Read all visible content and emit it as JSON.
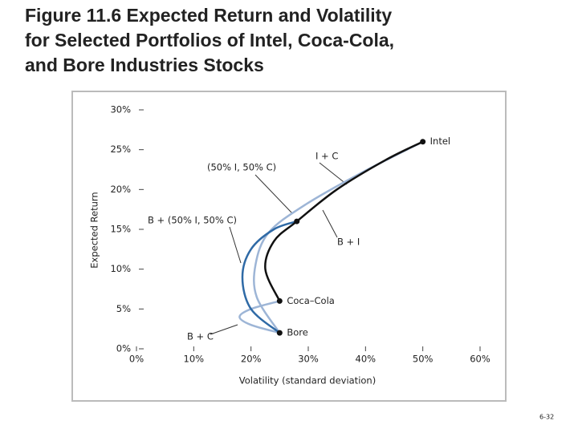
{
  "chart_data": {
    "type": "line",
    "title_lines": [
      "Figure 11.6  Expected Return and Volatility",
      "for Selected Portfolios of Intel, Coca-Cola,",
      "and Bore Industries Stocks"
    ],
    "x_label": "Volatility (standard deviation)",
    "y_label": "Expected Return",
    "xlim": [
      0,
      60
    ],
    "ylim": [
      0,
      30
    ],
    "xticks": [
      {
        "value": 0,
        "label": "0%"
      },
      {
        "value": 10,
        "label": "10%"
      },
      {
        "value": 20,
        "label": "20%"
      },
      {
        "value": 30,
        "label": "30%"
      },
      {
        "value": 40,
        "label": "40%"
      },
      {
        "value": 50,
        "label": "50%"
      },
      {
        "value": 60,
        "label": "60%"
      }
    ],
    "yticks": [
      {
        "value": 0,
        "label": "0%"
      },
      {
        "value": 5,
        "label": "5%"
      },
      {
        "value": 10,
        "label": "10%"
      },
      {
        "value": 15,
        "label": "15%"
      },
      {
        "value": 20,
        "label": "20%"
      },
      {
        "value": 25,
        "label": "25%"
      },
      {
        "value": 30,
        "label": "30%"
      }
    ],
    "series": [
      {
        "color": "#9db5d6",
        "x": [
          25,
          21,
          20.8,
          23.1,
          29.5,
          39.3,
          50
        ],
        "y": [
          2,
          6.5,
          10.6,
          14.6,
          18.1,
          22.1,
          26
        ]
      },
      {
        "color": "#9db5d6",
        "x": [
          25,
          20,
          18,
          20,
          25
        ],
        "y": [
          2,
          3,
          4,
          5,
          6
        ]
      },
      {
        "color": "#2f6aa6",
        "x": [
          25,
          20,
          18.5,
          20,
          24,
          28
        ],
        "y": [
          2,
          5,
          9,
          12.5,
          15,
          16
        ]
      },
      {
        "color": "#111111",
        "x": [
          25,
          22.5,
          24,
          28,
          35,
          43.5,
          50
        ],
        "y": [
          6,
          10,
          13.5,
          16,
          20,
          23.7,
          26
        ]
      }
    ],
    "points": {
      "color": "#111111",
      "labels": [
        "Intel",
        "Coca–Cola",
        "Bore",
        null
      ],
      "x": [
        50,
        25,
        25,
        28
      ],
      "y": [
        26,
        6,
        2,
        16
      ]
    },
    "annotations": [
      "I + C",
      "(50% I, 50% C)",
      "B + (50% I, 50% C)",
      "B + I",
      "B + C"
    ],
    "footer": "6-32"
  }
}
